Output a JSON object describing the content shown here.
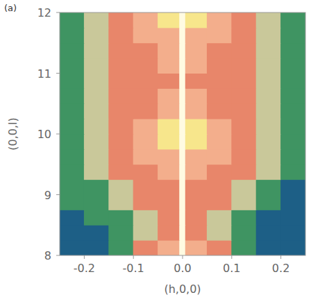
{
  "chart_data": {
    "type": "heatmap",
    "panel_label": "(a)",
    "x_label": "(h,0,0)",
    "y_label": "(0,0,l)",
    "xlim": [
      -0.25,
      0.25
    ],
    "ylim": [
      8,
      12
    ],
    "xticks": [
      -0.2,
      -0.1,
      {
        "value": 0,
        "label": "0.0"
      },
      0.1,
      0.2
    ],
    "yticks": [
      8,
      9,
      10,
      11,
      12
    ],
    "x_edges": [
      -0.25,
      -0.2,
      -0.15,
      -0.1,
      -0.05,
      -0.006,
      0.006,
      0.05,
      0.1,
      0.15,
      0.2,
      0.25
    ],
    "y_edges": [
      8,
      8.25,
      8.5,
      8.75,
      9,
      9.25,
      9.5,
      9.75,
      10,
      10.25,
      10.5,
      10.75,
      11,
      11.25,
      11.5,
      11.75,
      12
    ],
    "zlim": [
      0,
      6
    ],
    "colors": [
      "#1d5f86",
      "#3f9462",
      "#c9c89a",
      "#e8866a",
      "#f3ae8c",
      "#f7e68c",
      "#fffbe2"
    ],
    "cells": [
      [
        0,
        0,
        1,
        3,
        4,
        6,
        4,
        3,
        1,
        0,
        0
      ],
      [
        0,
        0,
        1,
        2,
        3,
        6,
        3,
        2,
        1,
        0,
        0
      ],
      [
        0,
        1,
        1,
        2,
        3,
        6,
        3,
        2,
        1,
        0,
        0
      ],
      [
        1,
        1,
        2,
        3,
        3,
        6,
        3,
        3,
        2,
        1,
        0
      ],
      [
        1,
        1,
        2,
        3,
        3,
        6,
        3,
        3,
        2,
        1,
        0
      ],
      [
        1,
        2,
        3,
        3,
        4,
        6,
        4,
        3,
        3,
        2,
        1
      ],
      [
        1,
        2,
        3,
        4,
        4,
        6,
        4,
        4,
        3,
        2,
        1
      ],
      [
        1,
        2,
        3,
        4,
        5,
        6,
        5,
        4,
        3,
        2,
        1
      ],
      [
        1,
        2,
        3,
        4,
        5,
        6,
        5,
        4,
        3,
        2,
        1
      ],
      [
        1,
        2,
        3,
        3,
        4,
        6,
        4,
        3,
        3,
        2,
        1
      ],
      [
        1,
        2,
        3,
        3,
        4,
        6,
        4,
        3,
        3,
        2,
        1
      ],
      [
        1,
        2,
        3,
        3,
        3,
        6,
        3,
        3,
        3,
        2,
        1
      ],
      [
        1,
        2,
        3,
        3,
        4,
        6,
        4,
        3,
        3,
        2,
        1
      ],
      [
        1,
        2,
        3,
        3,
        4,
        6,
        4,
        3,
        3,
        2,
        1
      ],
      [
        1,
        2,
        3,
        4,
        4,
        6,
        4,
        4,
        3,
        2,
        1
      ],
      [
        1,
        2,
        3,
        4,
        5,
        6,
        5,
        4,
        3,
        2,
        1
      ]
    ]
  }
}
